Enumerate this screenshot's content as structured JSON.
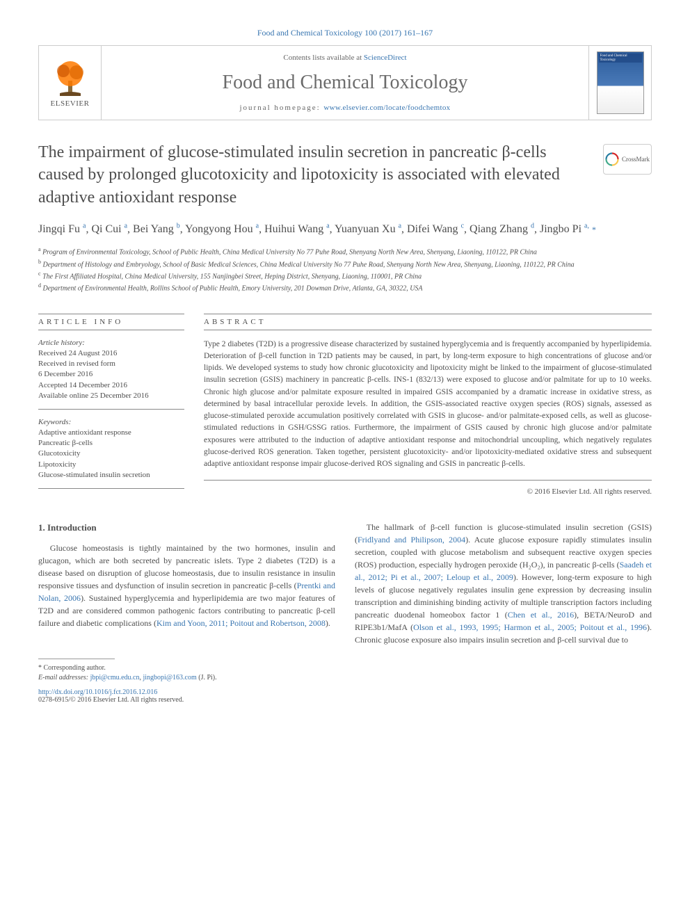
{
  "citation": "Food and Chemical Toxicology 100 (2017) 161–167",
  "header": {
    "contents_prefix": "Contents lists available at ",
    "contents_link": "ScienceDirect",
    "journal": "Food and Chemical Toxicology",
    "homepage_prefix": "journal homepage: ",
    "homepage_url": "www.elsevier.com/locate/foodchemtox",
    "publisher_logo_name": "ELSEVIER",
    "cover_title": "Food and Chemical Toxicology"
  },
  "crossmark_label": "CrossMark",
  "title": "The impairment of glucose-stimulated insulin secretion in pancreatic β-cells caused by prolonged glucotoxicity and lipotoxicity is associated with elevated adaptive antioxidant response",
  "authors_html": "Jingqi Fu <sup>a</sup>, Qi Cui <sup>a</sup>, Bei Yang <sup>b</sup>, Yongyong Hou <sup>a</sup>, Huihui Wang <sup>a</sup>, Yuanyuan Xu <sup>a</sup>, Difei Wang <sup>c</sup>, Qiang Zhang <sup>d</sup>, Jingbo Pi <sup>a,</sup> <span class='star'>*</span>",
  "affiliations": [
    {
      "sup": "a",
      "text": "Program of Environmental Toxicology, School of Public Health, China Medical University No 77 Puhe Road, Shenyang North New Area, Shenyang, Liaoning, 110122, PR China"
    },
    {
      "sup": "b",
      "text": "Department of Histology and Embryology, School of Basic Medical Sciences, China Medical University No 77 Puhe Road, Shenyang North New Area, Shenyang, Liaoning, 110122, PR China"
    },
    {
      "sup": "c",
      "text": "The First Affiliated Hospital, China Medical University, 155 Nanjingbei Street, Heping District, Shenyang, Liaoning, 110001, PR China"
    },
    {
      "sup": "d",
      "text": "Department of Environmental Health, Rollins School of Public Health, Emory University, 201 Dowman Drive, Atlanta, GA, 30322, USA"
    }
  ],
  "info": {
    "heading": "article info",
    "history_label": "Article history:",
    "history": [
      "Received 24 August 2016",
      "Received in revised form",
      "6 December 2016",
      "Accepted 14 December 2016",
      "Available online 25 December 2016"
    ],
    "keywords_label": "Keywords:",
    "keywords": [
      "Adaptive antioxidant response",
      "Pancreatic β-cells",
      "Glucotoxicity",
      "Lipotoxicity",
      "Glucose-stimulated insulin secretion"
    ]
  },
  "abstract": {
    "heading": "abstract",
    "text": "Type 2 diabetes (T2D) is a progressive disease characterized by sustained hyperglycemia and is frequently accompanied by hyperlipidemia. Deterioration of β-cell function in T2D patients may be caused, in part, by long-term exposure to high concentrations of glucose and/or lipids. We developed systems to study how chronic glucotoxicity and lipotoxicity might be linked to the impairment of glucose-stimulated insulin secretion (GSIS) machinery in pancreatic β-cells. INS-1 (832/13) were exposed to glucose and/or palmitate for up to 10 weeks. Chronic high glucose and/or palmitate exposure resulted in impaired GSIS accompanied by a dramatic increase in oxidative stress, as determined by basal intracellular peroxide levels. In addition, the GSIS-associated reactive oxygen species (ROS) signals, assessed as glucose-stimulated peroxide accumulation positively correlated with GSIS in glucose- and/or palmitate-exposed cells, as well as glucose-stimulated reductions in GSH/GSSG ratios. Furthermore, the impairment of GSIS caused by chronic high glucose and/or palmitate exposures were attributed to the induction of adaptive antioxidant response and mitochondrial uncoupling, which negatively regulates glucose-derived ROS generation. Taken together, persistent glucotoxicity- and/or lipotoxicity-mediated oxidative stress and subsequent adaptive antioxidant response impair glucose-derived ROS signaling and GSIS in pancreatic β-cells.",
    "copyright": "© 2016 Elsevier Ltd. All rights reserved."
  },
  "body": {
    "heading": "1. Introduction",
    "para1_a": "Glucose homeostasis is tightly maintained by the two hormones, insulin and glucagon, which are both secreted by pancreatic islets. Type 2 diabetes (T2D) is a disease based on disruption of glucose homeostasis, due to insulin resistance in insulin responsive tissues and dysfunction of insulin secretion in pancreatic β-cells (",
    "cite1": "Prentki and Nolan, 2006",
    "para1_b": "). Sustained hyperglycemia and hyperlipidemia are two major features of T2D and are considered common pathogenic factors contributing to pancreatic β-cell failure and diabetic complications (",
    "cite2": "Kim and Yoon, 2011; Poitout and Robertson, 2008",
    "para1_c": ").",
    "para2_a": "The hallmark of β-cell function is glucose-stimulated insulin secretion (GSIS) (",
    "cite3": "Fridlyand and Philipson, 2004",
    "para2_b": "). Acute glucose exposure rapidly stimulates insulin secretion, coupled with glucose metabolism and subsequent reactive oxygen species (ROS) production, especially hydrogen peroxide (H₂O₂), in pancreatic β-cells (",
    "cite4": "Saadeh et al., 2012; Pi et al., 2007; Leloup et al., 2009",
    "para2_c": "). However, long-term exposure to high levels of glucose negatively regulates insulin gene expression by decreasing insulin transcription and diminishing binding activity of multiple transcription factors including pancreatic duodenal homeobox factor 1 (",
    "cite5": "Chen et al., 2016",
    "para2_d": "), BETA/NeuroD and RIPE3b1/MafA (",
    "cite6": "Olson et al., 1993, 1995; Harmon et al., 2005; Poitout et al., 1996",
    "para2_e": "). Chronic glucose exposure also impairs insulin secretion and β-cell survival due to"
  },
  "footer": {
    "corresponding": "* Corresponding author.",
    "email_label": "E-mail addresses:",
    "email1": "jbpi@cmu.edu.cn",
    "email2": "jingbopi@163.com",
    "email_owner": "(J. Pi).",
    "doi": "http://dx.doi.org/10.1016/j.fct.2016.12.016",
    "issn": "0278-6915/© 2016 Elsevier Ltd. All rights reserved."
  },
  "colors": {
    "link": "#3875b0",
    "text": "#4d4d4d",
    "rule": "#888888",
    "logo_orange": "#ff7a00"
  }
}
